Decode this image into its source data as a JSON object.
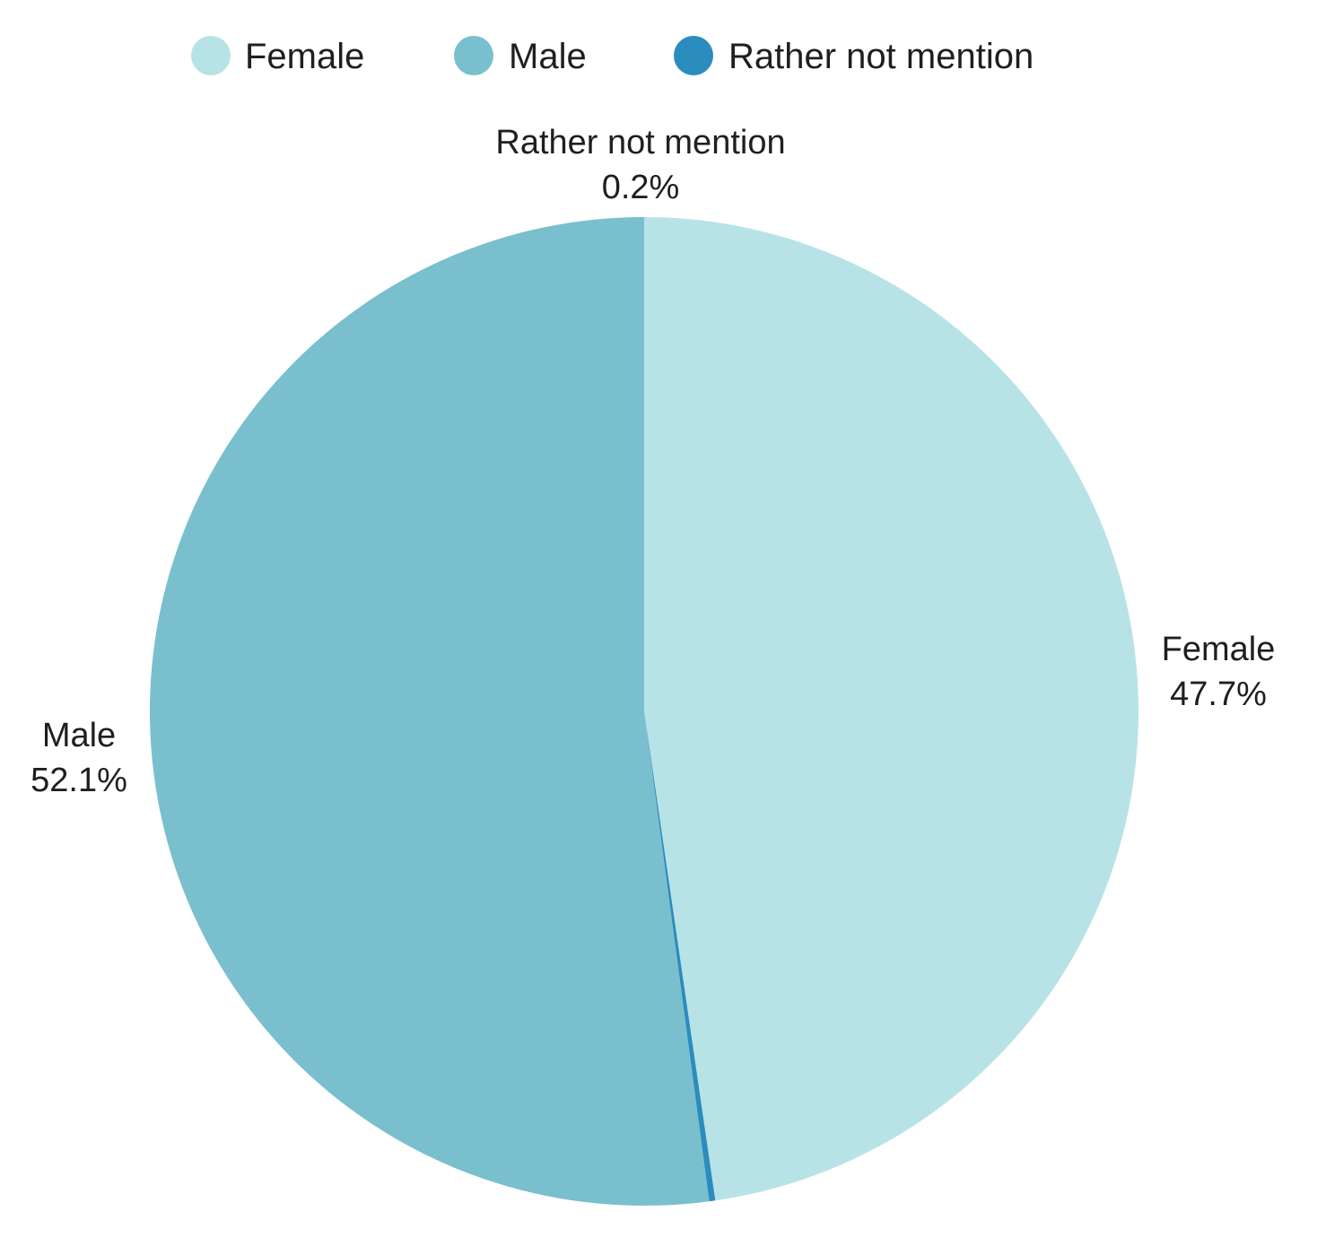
{
  "chart_data": {
    "type": "pie",
    "legend_position": "top",
    "start_angle": "12 o'clock",
    "direction": "clockwise",
    "slices": [
      {
        "name": "Female",
        "value": 47.7,
        "label": "47.7%",
        "color": "#b7e3e6"
      },
      {
        "name": "Rather not mention",
        "value": 0.2,
        "label": "0.2%",
        "color": "#2b8cbe"
      },
      {
        "name": "Male",
        "value": 52.1,
        "label": "52.1%",
        "color": "#7abfce"
      }
    ],
    "legend": [
      {
        "label": "Female",
        "color": "#b7e3e6"
      },
      {
        "label": "Male",
        "color": "#7abfce"
      },
      {
        "label": "Rather not mention",
        "color": "#2b8cbe"
      }
    ]
  }
}
